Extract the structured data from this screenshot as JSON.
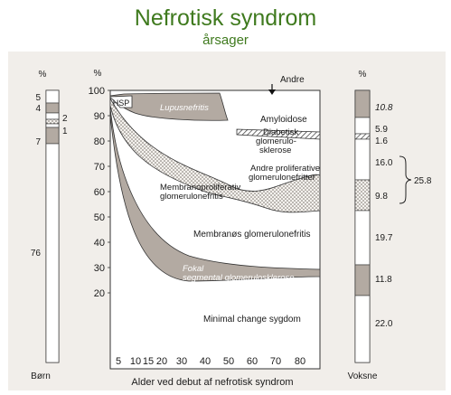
{
  "slide": {
    "title": "Nefrotisk syndrom",
    "subtitle": "årsager"
  },
  "colors": {
    "title_green": "#3f7a1e",
    "panel_background": "#f1eeea",
    "band_gray": "#b3aaa2",
    "band_light": "#e6e0da",
    "dots": "#6b6660"
  },
  "chart_data": [
    {
      "type": "stacked-bar",
      "name_label": "Børn",
      "unit_label": "%",
      "segments": [
        {
          "label": "76",
          "value": 76
        },
        {
          "label": "7",
          "value": 7
        },
        {
          "label": "1",
          "value": 1
        },
        {
          "label": "2",
          "value": 2
        },
        {
          "label": "4",
          "value": 4
        },
        {
          "label": "5",
          "value": 5
        }
      ]
    },
    {
      "type": "area",
      "ylabel_unit": "%",
      "xlabel": "Alder ved debut af nefrotisk syndrom",
      "x_ticks": [
        "5",
        "10",
        "15",
        "20",
        "30",
        "40",
        "50",
        "60",
        "70",
        "80"
      ],
      "y_ticks": [
        "20",
        "30",
        "40",
        "50",
        "60",
        "70",
        "80",
        "90",
        "100"
      ],
      "ylim": [
        20,
        100
      ],
      "x_scale": "compressed below 20",
      "regions": [
        {
          "label": "Minimal  change sygdom"
        },
        {
          "label": "Fokal segmental glomerulosklerose"
        },
        {
          "label": "Membranøs glomerulonefritis"
        },
        {
          "label": "Membranoproliferativ glomerulonefritis"
        },
        {
          "label": "Andre proliferative glomerulonefritter"
        },
        {
          "label": "Diabetisk glomerulosklerose"
        },
        {
          "label": "Amyloidose"
        },
        {
          "label": "Lupusnefritis"
        },
        {
          "label": "HSP"
        },
        {
          "label": "Andre"
        }
      ]
    },
    {
      "type": "stacked-bar",
      "name_label": "Voksne",
      "unit_label": "%",
      "bracket_value": "25.8",
      "segments": [
        {
          "label": "22.0",
          "value": 22.0
        },
        {
          "label": "11.8",
          "value": 11.8
        },
        {
          "label": "19.7",
          "value": 19.7
        },
        {
          "label": "9.8",
          "value": 9.8
        },
        {
          "label": "16.0",
          "value": 16.0
        },
        {
          "label": "1.6",
          "value": 1.6
        },
        {
          "label": "5.9",
          "value": 5.9
        },
        {
          "label": "10.8",
          "value": 10.8
        }
      ]
    }
  ]
}
